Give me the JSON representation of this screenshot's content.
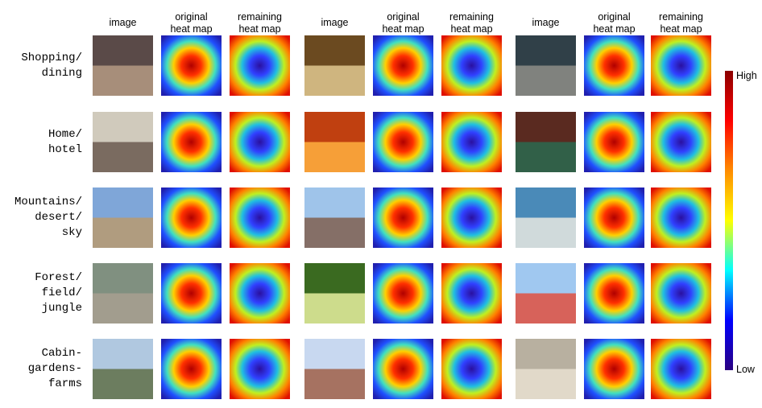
{
  "column_headers": [
    [
      "image"
    ],
    [
      "original",
      "heat map"
    ],
    [
      "remaining",
      "heat map"
    ],
    [
      "image"
    ],
    [
      "original",
      "heat map"
    ],
    [
      "remaining",
      "heat map"
    ],
    [
      "image"
    ],
    [
      "original",
      "heat map"
    ],
    [
      "remaining",
      "heat map"
    ]
  ],
  "rows": [
    {
      "label": [
        "Shopping/",
        "dining"
      ]
    },
    {
      "label": [
        "Home/",
        "hotel"
      ]
    },
    {
      "label": [
        "Mountains/",
        "desert/",
        "sky"
      ]
    },
    {
      "label": [
        "Forest/",
        "field/",
        "jungle"
      ]
    },
    {
      "label": [
        "Cabin-",
        "gardens-",
        "farms"
      ]
    }
  ],
  "colorbar": {
    "high_label": "High",
    "low_label": "Low",
    "colors": [
      "#8b0000",
      "#ff0000",
      "#ff8c00",
      "#ffff00",
      "#00ffff",
      "#0000ff",
      "#2a0080"
    ]
  }
}
